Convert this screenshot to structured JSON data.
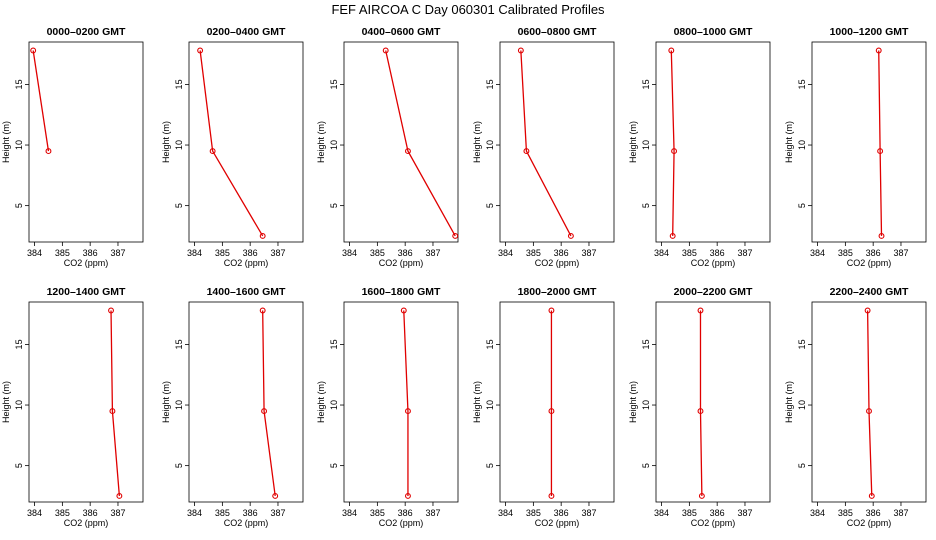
{
  "title": "FEF AIRCOA C  Day 060301  Calibrated Profiles",
  "colors": {
    "series": "#e00000",
    "axis": "#000000"
  },
  "chart_data": {
    "type": "line",
    "xlabel": "CO2 (ppm)",
    "ylabel": "Height (m)",
    "xlim": [
      383.8,
      387.9
    ],
    "ylim": [
      2.0,
      18.5
    ],
    "xticks": [
      384,
      385,
      386,
      387
    ],
    "xtick_labels": [
      "384",
      "385",
      "386",
      "387"
    ],
    "yticks": [
      5,
      10,
      15
    ],
    "ytick_labels": [
      "5",
      "10",
      "15"
    ],
    "heights": [
      17.8,
      9.5,
      2.5
    ],
    "panels": [
      {
        "title": "0000–0200 GMT",
        "x": [
          383.95,
          384.5,
          null
        ]
      },
      {
        "title": "0200–0400 GMT",
        "x": [
          384.2,
          384.65,
          386.45
        ]
      },
      {
        "title": "0400–0600 GMT",
        "x": [
          385.3,
          386.1,
          387.8
        ]
      },
      {
        "title": "0600–0800 GMT",
        "x": [
          384.55,
          384.75,
          386.35
        ]
      },
      {
        "title": "0800–1000 GMT",
        "x": [
          384.35,
          384.45,
          384.4
        ]
      },
      {
        "title": "1000–1200 GMT",
        "x": [
          386.2,
          386.25,
          386.3
        ]
      },
      {
        "title": "1200–1400 GMT",
        "x": [
          386.75,
          386.8,
          387.05
        ]
      },
      {
        "title": "1400–1600 GMT",
        "x": [
          386.45,
          386.5,
          386.9
        ]
      },
      {
        "title": "1600–1800 GMT",
        "x": [
          385.95,
          386.1,
          386.1
        ]
      },
      {
        "title": "1800–2000 GMT",
        "x": [
          385.65,
          385.65,
          385.65
        ]
      },
      {
        "title": "2000–2200 GMT",
        "x": [
          385.4,
          385.4,
          385.45
        ]
      },
      {
        "title": "2200–2400 GMT",
        "x": [
          385.8,
          385.85,
          385.95
        ]
      }
    ]
  }
}
